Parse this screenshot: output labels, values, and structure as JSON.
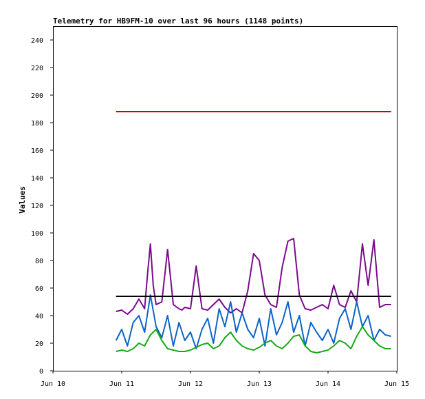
{
  "chart_data": {
    "type": "line",
    "title": "Telemetry for HB9FM-10 over last 96 hours (1148 points)",
    "xlabel": "",
    "ylabel": "Values",
    "xlim": [
      "2024-06-10",
      "2024-06-15"
    ],
    "ylim": [
      0,
      250
    ],
    "x_tick_labels": [
      "Jun 10",
      "Jun 11",
      "Jun 12",
      "Jun 13",
      "Jun 14",
      "Jun 15"
    ],
    "y_ticks": [
      0,
      20,
      40,
      60,
      80,
      100,
      120,
      140,
      160,
      180,
      200,
      220,
      240
    ],
    "grid": false,
    "legend": "none",
    "series": [
      {
        "color": "#d40000",
        "x": [
          "2024-06-10 22:00",
          "2024-06-14 22:00"
        ],
        "y": [
          188,
          188
        ]
      },
      {
        "color": "#000000",
        "x": [
          "2024-06-10 22:00",
          "2024-06-14 22:00"
        ],
        "y": [
          54,
          54
        ]
      },
      {
        "color": "#7a0a8c",
        "x": [
          "2024-06-10 22:00",
          "2024-06-11 00:00",
          "2024-06-11 02:00",
          "2024-06-11 04:00",
          "2024-06-11 06:00",
          "2024-06-11 08:00",
          "2024-06-11 09:00",
          "2024-06-11 10:00",
          "2024-06-11 11:00",
          "2024-06-11 12:00",
          "2024-06-11 14:00",
          "2024-06-11 16:00",
          "2024-06-11 18:00",
          "2024-06-11 20:00",
          "2024-06-11 21:00",
          "2024-06-11 22:00",
          "2024-06-12 00:00",
          "2024-06-12 02:00",
          "2024-06-12 04:00",
          "2024-06-12 06:00",
          "2024-06-12 08:00",
          "2024-06-12 10:00",
          "2024-06-12 12:00",
          "2024-06-12 14:00",
          "2024-06-12 16:00",
          "2024-06-12 18:00",
          "2024-06-12 20:00",
          "2024-06-12 22:00",
          "2024-06-13 00:00",
          "2024-06-13 02:00",
          "2024-06-13 04:00",
          "2024-06-13 06:00",
          "2024-06-13 08:00",
          "2024-06-13 10:00",
          "2024-06-13 12:00",
          "2024-06-13 14:00",
          "2024-06-13 16:00",
          "2024-06-13 18:00",
          "2024-06-13 20:00",
          "2024-06-13 22:00",
          "2024-06-14 00:00",
          "2024-06-14 02:00",
          "2024-06-14 04:00",
          "2024-06-14 06:00",
          "2024-06-14 08:00",
          "2024-06-14 10:00",
          "2024-06-14 12:00",
          "2024-06-14 14:00",
          "2024-06-14 16:00",
          "2024-06-14 18:00",
          "2024-06-14 20:00",
          "2024-06-14 22:00"
        ],
        "y": [
          43,
          44,
          41,
          45,
          52,
          45,
          70,
          92,
          62,
          48,
          50,
          88,
          48,
          45,
          44,
          46,
          45,
          76,
          45,
          44,
          48,
          52,
          46,
          42,
          45,
          42,
          58,
          85,
          80,
          55,
          48,
          46,
          75,
          94,
          96,
          55,
          45,
          44,
          46,
          48,
          45,
          62,
          48,
          46,
          58,
          50,
          92,
          62,
          95,
          46,
          48,
          48
        ]
      },
      {
        "color": "#0a64c8",
        "x": [
          "2024-06-10 22:00",
          "2024-06-11 00:00",
          "2024-06-11 02:00",
          "2024-06-11 04:00",
          "2024-06-11 06:00",
          "2024-06-11 08:00",
          "2024-06-11 10:00",
          "2024-06-11 12:00",
          "2024-06-11 14:00",
          "2024-06-11 16:00",
          "2024-06-11 18:00",
          "2024-06-11 20:00",
          "2024-06-11 22:00",
          "2024-06-12 00:00",
          "2024-06-12 02:00",
          "2024-06-12 04:00",
          "2024-06-12 06:00",
          "2024-06-12 08:00",
          "2024-06-12 10:00",
          "2024-06-12 12:00",
          "2024-06-12 14:00",
          "2024-06-12 16:00",
          "2024-06-12 18:00",
          "2024-06-12 20:00",
          "2024-06-12 22:00",
          "2024-06-13 00:00",
          "2024-06-13 02:00",
          "2024-06-13 04:00",
          "2024-06-13 06:00",
          "2024-06-13 08:00",
          "2024-06-13 10:00",
          "2024-06-13 12:00",
          "2024-06-13 14:00",
          "2024-06-13 16:00",
          "2024-06-13 18:00",
          "2024-06-13 20:00",
          "2024-06-13 22:00",
          "2024-06-14 00:00",
          "2024-06-14 02:00",
          "2024-06-14 04:00",
          "2024-06-14 06:00",
          "2024-06-14 08:00",
          "2024-06-14 10:00",
          "2024-06-14 12:00",
          "2024-06-14 14:00",
          "2024-06-14 16:00",
          "2024-06-14 18:00",
          "2024-06-14 20:00",
          "2024-06-14 22:00"
        ],
        "y": [
          22,
          30,
          18,
          35,
          40,
          28,
          55,
          32,
          24,
          40,
          18,
          35,
          22,
          28,
          16,
          30,
          38,
          20,
          45,
          32,
          50,
          28,
          42,
          30,
          24,
          38,
          18,
          45,
          26,
          35,
          50,
          28,
          40,
          18,
          35,
          28,
          22,
          30,
          20,
          38,
          45,
          30,
          50,
          32,
          40,
          22,
          30,
          26,
          25
        ]
      },
      {
        "color": "#18a818",
        "x": [
          "2024-06-10 22:00",
          "2024-06-11 00:00",
          "2024-06-11 02:00",
          "2024-06-11 04:00",
          "2024-06-11 06:00",
          "2024-06-11 08:00",
          "2024-06-11 10:00",
          "2024-06-11 12:00",
          "2024-06-11 14:00",
          "2024-06-11 16:00",
          "2024-06-11 18:00",
          "2024-06-11 20:00",
          "2024-06-11 22:00",
          "2024-06-12 00:00",
          "2024-06-12 02:00",
          "2024-06-12 04:00",
          "2024-06-12 06:00",
          "2024-06-12 08:00",
          "2024-06-12 10:00",
          "2024-06-12 12:00",
          "2024-06-12 14:00",
          "2024-06-12 16:00",
          "2024-06-12 18:00",
          "2024-06-12 20:00",
          "2024-06-12 22:00",
          "2024-06-13 00:00",
          "2024-06-13 02:00",
          "2024-06-13 04:00",
          "2024-06-13 06:00",
          "2024-06-13 08:00",
          "2024-06-13 10:00",
          "2024-06-13 12:00",
          "2024-06-13 14:00",
          "2024-06-13 16:00",
          "2024-06-13 18:00",
          "2024-06-13 20:00",
          "2024-06-13 22:00",
          "2024-06-14 00:00",
          "2024-06-14 02:00",
          "2024-06-14 04:00",
          "2024-06-14 06:00",
          "2024-06-14 08:00",
          "2024-06-14 10:00",
          "2024-06-14 12:00",
          "2024-06-14 14:00",
          "2024-06-14 16:00",
          "2024-06-14 18:00",
          "2024-06-14 20:00",
          "2024-06-14 22:00"
        ],
        "y": [
          14,
          15,
          14,
          16,
          20,
          18,
          26,
          30,
          22,
          16,
          15,
          14,
          14,
          15,
          17,
          19,
          20,
          16,
          18,
          24,
          28,
          22,
          18,
          16,
          15,
          17,
          20,
          22,
          18,
          16,
          20,
          25,
          26,
          18,
          14,
          13,
          14,
          15,
          18,
          22,
          20,
          16,
          25,
          32,
          26,
          22,
          18,
          16,
          16
        ]
      }
    ]
  }
}
